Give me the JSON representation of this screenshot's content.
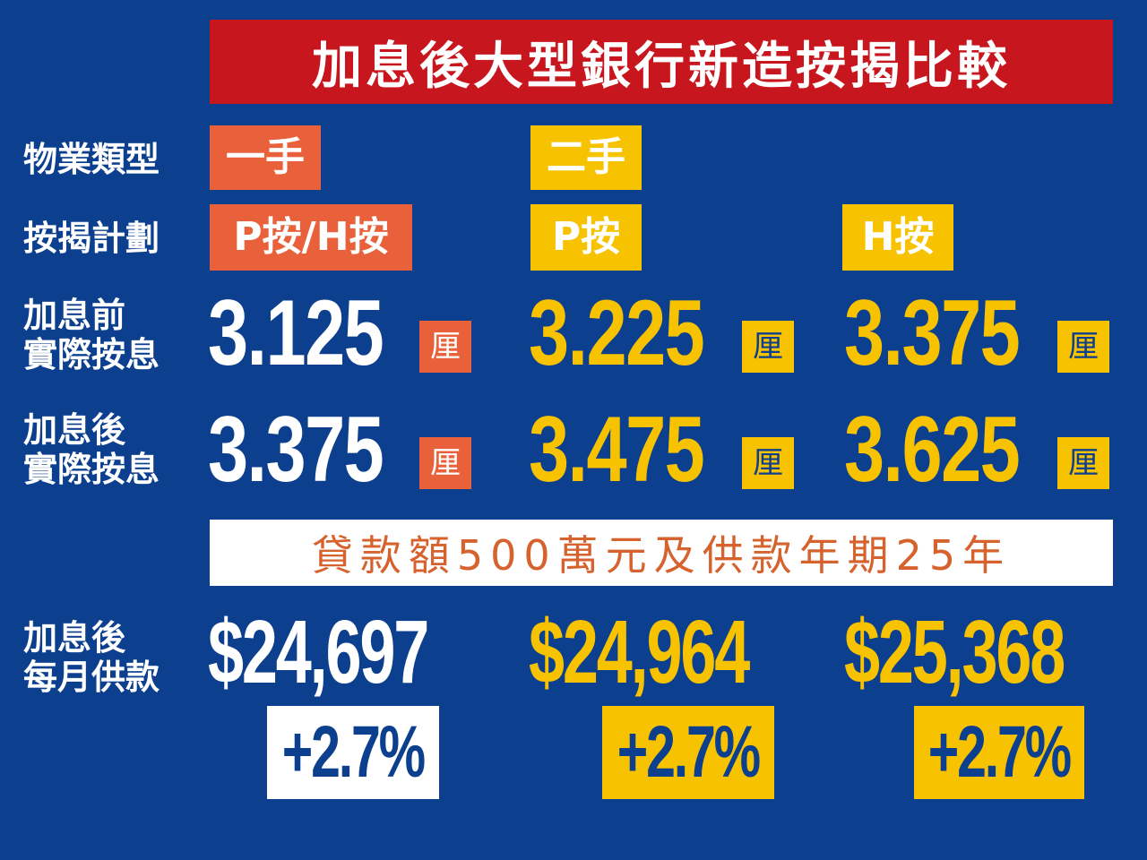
{
  "title": "加息後大型銀行新造按揭比較",
  "labels": {
    "property_type": "物業類型",
    "mortgage_plan": "按揭計劃",
    "rate_before_l1": "加息前",
    "rate_before_l2": "實際按息",
    "rate_after_l1": "加息後",
    "rate_after_l2": "實際按息",
    "payment_l1": "加息後",
    "payment_l2": "每月供款"
  },
  "property_types": [
    "一手",
    "二手"
  ],
  "plans": [
    "P按/H按",
    "P按",
    "H按"
  ],
  "unit": "厘",
  "rates_before": [
    "3.125",
    "3.225",
    "3.375"
  ],
  "rates_after": [
    "3.375",
    "3.475",
    "3.625"
  ],
  "loan_note": "貸款額500萬元及供款年期25年",
  "payments": [
    "$24,697",
    "$24,964",
    "$25,368"
  ],
  "changes": [
    "+2.7%",
    "+2.7%",
    "+2.7%"
  ],
  "colors": {
    "background": "#0d3f8f",
    "title_bg": "#c8161e",
    "first_hand": "#e8613a",
    "second_hand": "#f7c200",
    "banner_text": "#d6622e"
  }
}
